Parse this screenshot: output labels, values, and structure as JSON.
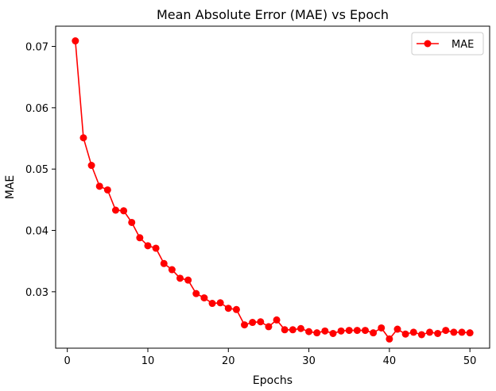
{
  "chart_data": {
    "type": "line",
    "title": "Mean Absolute Error (MAE) vs Epoch",
    "xlabel": "Epochs",
    "ylabel": "MAE",
    "xlim": [
      -1.45,
      52.45
    ],
    "ylim": [
      0.0208,
      0.0733
    ],
    "xticks": [
      0,
      10,
      20,
      30,
      40,
      50
    ],
    "yticks": [
      0.03,
      0.04,
      0.05,
      0.06,
      0.07
    ],
    "xtick_labels": [
      "0",
      "10",
      "20",
      "30",
      "40",
      "50"
    ],
    "ytick_labels": [
      "0.03",
      "0.04",
      "0.05",
      "0.06",
      "0.07"
    ],
    "grid": false,
    "legend_position": "top-right",
    "colors": {
      "series": "#ff0000"
    },
    "series": [
      {
        "name": "MAE",
        "marker": "circle",
        "x": [
          1,
          2,
          3,
          4,
          5,
          6,
          7,
          8,
          9,
          10,
          11,
          12,
          13,
          14,
          15,
          16,
          17,
          18,
          19,
          20,
          21,
          22,
          23,
          24,
          25,
          26,
          27,
          28,
          29,
          30,
          31,
          32,
          33,
          34,
          35,
          36,
          37,
          38,
          39,
          40,
          41,
          42,
          43,
          44,
          45,
          46,
          47,
          48,
          49,
          50
        ],
        "values": [
          0.0709,
          0.0551,
          0.0506,
          0.0472,
          0.0466,
          0.0433,
          0.0432,
          0.0413,
          0.0388,
          0.0375,
          0.0371,
          0.0346,
          0.0336,
          0.0322,
          0.0319,
          0.0297,
          0.029,
          0.0281,
          0.0282,
          0.0273,
          0.0271,
          0.0246,
          0.025,
          0.0251,
          0.0243,
          0.0254,
          0.0238,
          0.0238,
          0.024,
          0.0235,
          0.0233,
          0.0236,
          0.0232,
          0.0236,
          0.0237,
          0.0237,
          0.0237,
          0.0233,
          0.0241,
          0.0223,
          0.0239,
          0.0231,
          0.0234,
          0.023,
          0.0234,
          0.0232,
          0.0237,
          0.0234,
          0.0234,
          0.0233
        ]
      }
    ]
  }
}
